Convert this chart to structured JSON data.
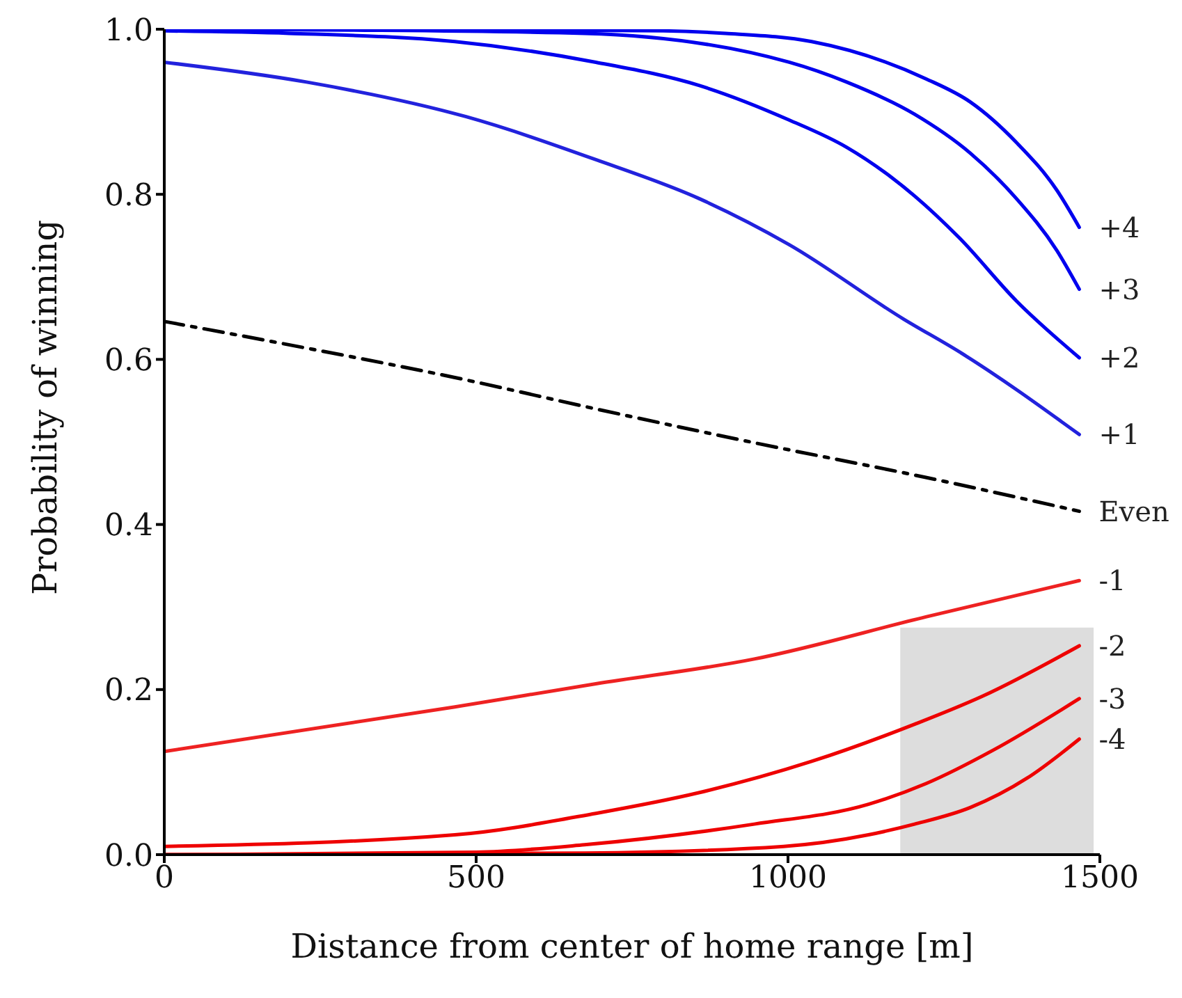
{
  "chart_data": {
    "type": "line",
    "xlabel": "Distance from center of home range [m]",
    "ylabel": "Probability of winning",
    "xlim": [
      0,
      1500
    ],
    "ylim": [
      0,
      1
    ],
    "xticks": [
      0,
      500,
      1000,
      1500
    ],
    "yticks": [
      {
        "value": 0,
        "label": "0.0"
      },
      {
        "value": 0.2,
        "label": "0.2"
      },
      {
        "value": 0.4,
        "label": "0.4"
      },
      {
        "value": 0.6,
        "label": "0.6"
      },
      {
        "value": 0.8,
        "label": "0.8"
      },
      {
        "value": 1,
        "label": "1.0"
      }
    ],
    "grid": false,
    "legend": false,
    "marker": "none",
    "series": [
      {
        "type": "area",
        "color": "#dddddd",
        "x": [
          1180,
          1490
        ],
        "values": [
          0.275,
          0.275
        ]
      },
      {
        "name": "+4",
        "color": "#0000ee",
        "x": [
          0,
          400,
          800,
          900,
          1038,
          1221,
          1292,
          1366,
          1431,
          1467
        ],
        "values": [
          1,
          1,
          0.998,
          0.995,
          0.985,
          0.94,
          0.912,
          0.863,
          0.805,
          0.76
        ]
      },
      {
        "name": "+3",
        "color": "#0000ee",
        "x": [
          0,
          300,
          674,
          1002,
          1094,
          1203,
          1292,
          1366,
          1431,
          1467
        ],
        "values": [
          1,
          0.999,
          0.995,
          0.96,
          0.936,
          0.897,
          0.85,
          0.795,
          0.732,
          0.685
        ]
      },
      {
        "name": "+2",
        "color": "#0000ee",
        "x": [
          0,
          200,
          466,
          692,
          857,
          1002,
          1094,
          1203,
          1275,
          1366,
          1467
        ],
        "values": [
          0.998,
          0.995,
          0.985,
          0.96,
          0.932,
          0.89,
          0.857,
          0.798,
          0.747,
          0.671,
          0.602
        ]
      },
      {
        "name": "+1",
        "color": "#2222dd",
        "x": [
          0,
          228,
          484,
          692,
          857,
          1002,
          1185,
          1275,
          1467
        ],
        "values": [
          0.96,
          0.936,
          0.894,
          0.842,
          0.795,
          0.739,
          0.649,
          0.609,
          0.509
        ]
      },
      {
        "name": "Even",
        "color": "#000000",
        "line_style": "dashed",
        "x": [
          0,
          191,
          466,
          692,
          946,
          1221,
          1467
        ],
        "values": [
          0.646,
          0.619,
          0.578,
          0.54,
          0.499,
          0.457,
          0.416
        ]
      },
      {
        "name": "-1",
        "color": "#ee2222",
        "x": [
          0,
          466,
          692,
          946,
          1221,
          1467
        ],
        "values": [
          0.125,
          0.179,
          0.207,
          0.237,
          0.288,
          0.332
        ]
      },
      {
        "name": "-2",
        "color": "#ee0000",
        "x": [
          0,
          466,
          692,
          857,
          1038,
          1203,
          1312,
          1467
        ],
        "values": [
          0.01,
          0.024,
          0.05,
          0.075,
          0.113,
          0.158,
          0.192,
          0.253
        ]
      },
      {
        "name": "-3",
        "color": "#ee0000",
        "x": [
          0,
          500,
          674,
          946,
          1129,
          1221,
          1330,
          1467
        ],
        "values": [
          0,
          0.003,
          0.012,
          0.037,
          0.061,
          0.086,
          0.127,
          0.189
        ]
      },
      {
        "name": "-4",
        "color": "#ee0000",
        "x": [
          0,
          674,
          993,
          1129,
          1203,
          1292,
          1384,
          1467
        ],
        "values": [
          0,
          0.002,
          0.01,
          0.024,
          0.037,
          0.057,
          0.093,
          0.14
        ]
      }
    ]
  }
}
